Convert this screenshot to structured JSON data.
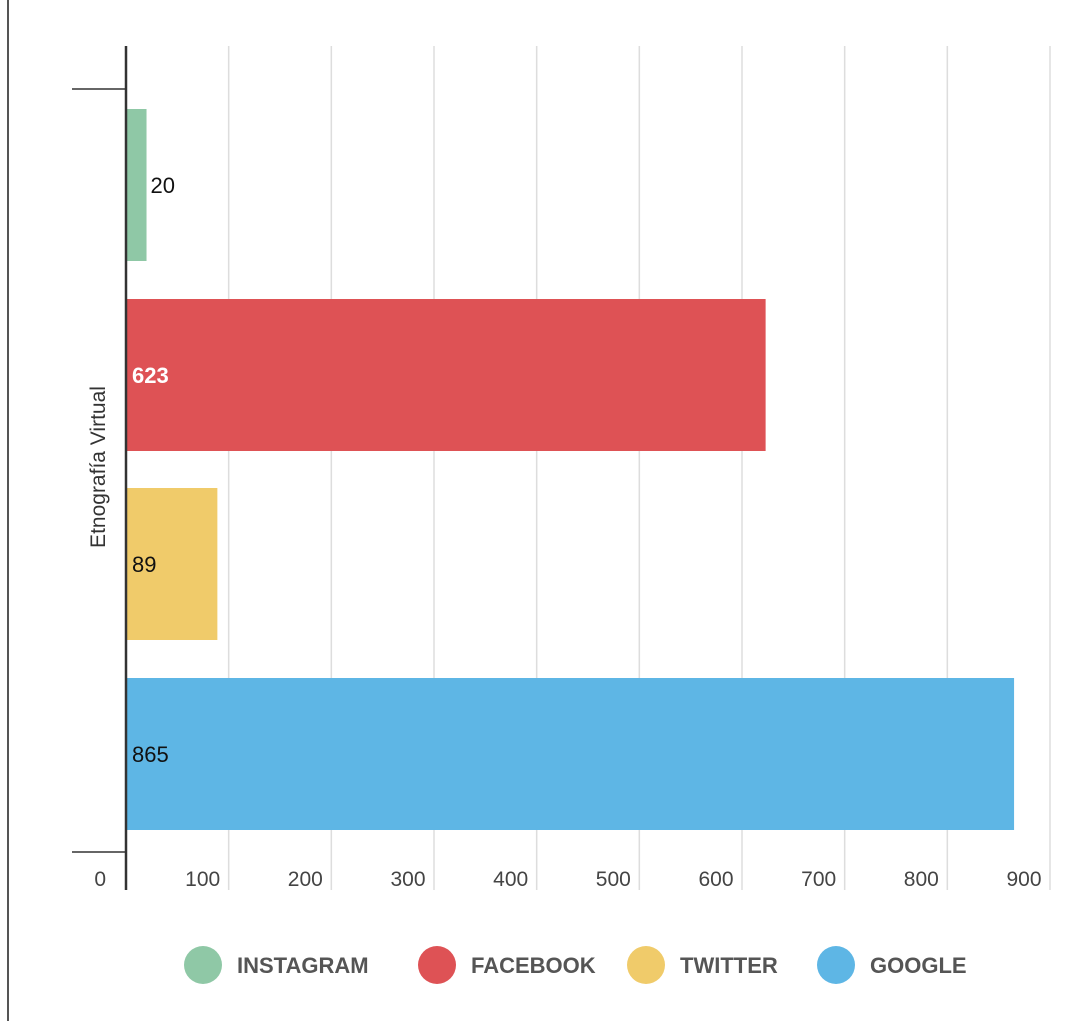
{
  "chart_data": {
    "type": "bar",
    "orientation": "horizontal",
    "ylabel": "Etnografía Virtual",
    "xlim": [
      0,
      900
    ],
    "x_ticks": [
      "0",
      "100",
      "200",
      "300",
      "400",
      "500",
      "600",
      "700",
      "800",
      "900"
    ],
    "grid": true,
    "legend_position": "bottom",
    "series": [
      {
        "name": "INSTAGRAM",
        "value": 20,
        "label": "20",
        "color": "#8fc8a6"
      },
      {
        "name": "FACEBOOK",
        "value": 623,
        "label": "623",
        "color": "#de5255"
      },
      {
        "name": "TWITTER",
        "value": 89,
        "label": "89",
        "color": "#f0cb6a"
      },
      {
        "name": "GOOGLE",
        "value": 865,
        "label": "865",
        "color": "#5eb6e5"
      }
    ]
  }
}
